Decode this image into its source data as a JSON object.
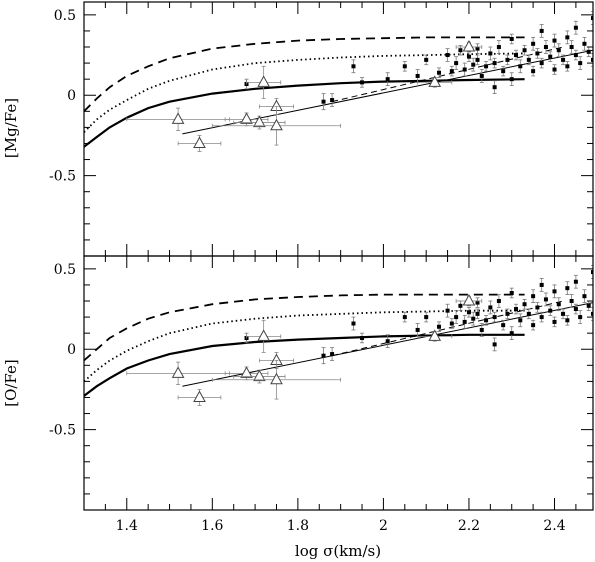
{
  "chart_data": [
    {
      "type": "scatter",
      "panel": "top",
      "ylabel": "[Mg/Fe]",
      "xlabel": "",
      "xlim": [
        1.3,
        2.49
      ],
      "ylim": [
        -1.0,
        0.58
      ],
      "xticks": [
        1.4,
        1.6,
        1.8,
        2.0,
        2.2,
        2.4
      ],
      "xtick_labels": [
        "",
        "",
        "",
        "",
        "",
        ""
      ],
      "yticks": [
        0.5,
        0,
        -0.5
      ],
      "ytick_labels": [
        "0.5",
        "0",
        "-0.5"
      ],
      "grid": false,
      "models": [
        {
          "style": "dashed",
          "x": [
            1.3,
            1.33,
            1.36,
            1.4,
            1.45,
            1.5,
            1.6,
            1.7,
            1.8,
            1.9,
            2.0,
            2.1,
            2.2,
            2.33
          ],
          "y": [
            -0.1,
            -0.02,
            0.05,
            0.12,
            0.18,
            0.23,
            0.29,
            0.32,
            0.34,
            0.35,
            0.355,
            0.36,
            0.36,
            0.36
          ]
        },
        {
          "style": "dotted",
          "x": [
            1.3,
            1.33,
            1.36,
            1.4,
            1.45,
            1.5,
            1.6,
            1.7,
            1.8,
            1.9,
            2.0,
            2.1,
            2.2,
            2.33
          ],
          "y": [
            -0.23,
            -0.15,
            -0.09,
            -0.03,
            0.04,
            0.09,
            0.16,
            0.2,
            0.22,
            0.235,
            0.245,
            0.25,
            0.255,
            0.26
          ]
        },
        {
          "style": "solid-thick",
          "x": [
            1.3,
            1.33,
            1.36,
            1.4,
            1.45,
            1.5,
            1.6,
            1.7,
            1.8,
            1.9,
            2.0,
            2.1,
            2.2,
            2.33
          ],
          "y": [
            -0.32,
            -0.26,
            -0.2,
            -0.14,
            -0.08,
            -0.04,
            0.01,
            0.04,
            0.06,
            0.075,
            0.085,
            0.09,
            0.095,
            0.1
          ]
        }
      ],
      "fits": [
        {
          "style": "solid-thin",
          "x": [
            1.53,
            2.49
          ],
          "y": [
            -0.24,
            0.28
          ]
        },
        {
          "style": "dashed-thin",
          "x": [
            1.88,
            2.42
          ],
          "y": [
            -0.04,
            0.3
          ]
        }
      ],
      "triangles": [
        {
          "x": 1.52,
          "y": -0.15,
          "xerr": 0.12,
          "yerr": 0.07
        },
        {
          "x": 1.57,
          "y": -0.3,
          "xerr": 0.05,
          "yerr": 0.05
        },
        {
          "x": 1.68,
          "y": -0.15,
          "xerr": 0.05,
          "yerr": 0.04
        },
        {
          "x": 1.71,
          "y": -0.17,
          "xerr": 0.06,
          "yerr": 0.04
        },
        {
          "x": 1.72,
          "y": 0.08,
          "xerr": 0.04,
          "yerr": 0.1
        },
        {
          "x": 1.75,
          "y": -0.07,
          "xerr": 0.04,
          "yerr": 0.05
        },
        {
          "x": 1.75,
          "y": -0.19,
          "xerr": 0.15,
          "yerr": 0.12
        },
        {
          "x": 2.12,
          "y": 0.08,
          "xerr": 0.04,
          "yerr": 0.03
        },
        {
          "x": 2.2,
          "y": 0.3,
          "xerr": 0.03,
          "yerr": 0.03
        }
      ],
      "points": [
        {
          "x": 1.68,
          "y": 0.07,
          "yerr": 0.03
        },
        {
          "x": 1.86,
          "y": -0.04,
          "yerr": 0.05
        },
        {
          "x": 1.88,
          "y": -0.03,
          "yerr": 0.04
        },
        {
          "x": 1.93,
          "y": 0.18,
          "yerr": 0.04
        },
        {
          "x": 1.95,
          "y": 0.08,
          "yerr": 0.03
        },
        {
          "x": 2.01,
          "y": 0.1,
          "yerr": 0.04
        },
        {
          "x": 2.05,
          "y": 0.18,
          "yerr": 0.03
        },
        {
          "x": 2.08,
          "y": 0.12,
          "yerr": 0.04
        },
        {
          "x": 2.1,
          "y": 0.22,
          "yerr": 0.03
        },
        {
          "x": 2.13,
          "y": 0.14,
          "yerr": 0.03
        },
        {
          "x": 2.15,
          "y": 0.25,
          "yerr": 0.04
        },
        {
          "x": 2.16,
          "y": 0.15,
          "yerr": 0.03
        },
        {
          "x": 2.17,
          "y": 0.2,
          "yerr": 0.04
        },
        {
          "x": 2.18,
          "y": 0.28,
          "yerr": 0.03
        },
        {
          "x": 2.19,
          "y": 0.16,
          "yerr": 0.04
        },
        {
          "x": 2.2,
          "y": 0.24,
          "yerr": 0.03
        },
        {
          "x": 2.21,
          "y": 0.19,
          "yerr": 0.04
        },
        {
          "x": 2.22,
          "y": 0.22,
          "yerr": 0.03
        },
        {
          "x": 2.22,
          "y": 0.29,
          "yerr": 0.03
        },
        {
          "x": 2.23,
          "y": 0.12,
          "yerr": 0.04
        },
        {
          "x": 2.24,
          "y": 0.18,
          "yerr": 0.03
        },
        {
          "x": 2.25,
          "y": 0.26,
          "yerr": 0.04
        },
        {
          "x": 2.26,
          "y": 0.05,
          "yerr": 0.04
        },
        {
          "x": 2.26,
          "y": 0.2,
          "yerr": 0.03
        },
        {
          "x": 2.27,
          "y": 0.3,
          "yerr": 0.04
        },
        {
          "x": 2.28,
          "y": 0.15,
          "yerr": 0.03
        },
        {
          "x": 2.29,
          "y": 0.22,
          "yerr": 0.03
        },
        {
          "x": 2.3,
          "y": 0.35,
          "yerr": 0.03
        },
        {
          "x": 2.3,
          "y": 0.1,
          "yerr": 0.04
        },
        {
          "x": 2.31,
          "y": 0.25,
          "yerr": 0.03
        },
        {
          "x": 2.32,
          "y": 0.18,
          "yerr": 0.04
        },
        {
          "x": 2.33,
          "y": 0.28,
          "yerr": 0.03
        },
        {
          "x": 2.34,
          "y": 0.22,
          "yerr": 0.03
        },
        {
          "x": 2.35,
          "y": 0.32,
          "yerr": 0.04
        },
        {
          "x": 2.35,
          "y": 0.15,
          "yerr": 0.03
        },
        {
          "x": 2.36,
          "y": 0.26,
          "yerr": 0.03
        },
        {
          "x": 2.37,
          "y": 0.4,
          "yerr": 0.04
        },
        {
          "x": 2.37,
          "y": 0.2,
          "yerr": 0.03
        },
        {
          "x": 2.38,
          "y": 0.3,
          "yerr": 0.04
        },
        {
          "x": 2.39,
          "y": 0.24,
          "yerr": 0.03
        },
        {
          "x": 2.4,
          "y": 0.34,
          "yerr": 0.04
        },
        {
          "x": 2.4,
          "y": 0.16,
          "yerr": 0.03
        },
        {
          "x": 2.41,
          "y": 0.28,
          "yerr": 0.04
        },
        {
          "x": 2.42,
          "y": 0.22,
          "yerr": 0.03
        },
        {
          "x": 2.43,
          "y": 0.36,
          "yerr": 0.04
        },
        {
          "x": 2.43,
          "y": 0.18,
          "yerr": 0.03
        },
        {
          "x": 2.44,
          "y": 0.3,
          "yerr": 0.04
        },
        {
          "x": 2.45,
          "y": 0.25,
          "yerr": 0.03
        },
        {
          "x": 2.45,
          "y": 0.42,
          "yerr": 0.04
        },
        {
          "x": 2.46,
          "y": 0.2,
          "yerr": 0.04
        },
        {
          "x": 2.47,
          "y": 0.32,
          "yerr": 0.04
        },
        {
          "x": 2.48,
          "y": 0.27,
          "yerr": 0.03
        },
        {
          "x": 2.49,
          "y": 0.48,
          "yerr": 0.04
        },
        {
          "x": 2.49,
          "y": 0.22,
          "yerr": 0.04
        }
      ]
    },
    {
      "type": "scatter",
      "panel": "bottom",
      "ylabel": "[O/Fe]",
      "xlabel": "log σ(km/s)",
      "xlim": [
        1.3,
        2.49
      ],
      "ylim": [
        -1.0,
        0.58
      ],
      "xticks": [
        1.4,
        1.6,
        1.8,
        2.0,
        2.2,
        2.4
      ],
      "xtick_labels": [
        "1.4",
        "1.6",
        "1.8",
        "2",
        "2.2",
        "2.4"
      ],
      "yticks": [
        0.5,
        0,
        -0.5
      ],
      "ytick_labels": [
        "0.5",
        "0",
        "-0.5"
      ],
      "grid": false,
      "models": [
        {
          "style": "dashed",
          "x": [
            1.3,
            1.33,
            1.36,
            1.4,
            1.45,
            1.5,
            1.6,
            1.7,
            1.8,
            1.9,
            2.0,
            2.1,
            2.2,
            2.33
          ],
          "y": [
            -0.07,
            0.0,
            0.07,
            0.13,
            0.19,
            0.23,
            0.28,
            0.31,
            0.325,
            0.335,
            0.34,
            0.34,
            0.34,
            0.34
          ]
        },
        {
          "style": "dotted",
          "x": [
            1.3,
            1.33,
            1.36,
            1.4,
            1.45,
            1.5,
            1.6,
            1.7,
            1.8,
            1.9,
            2.0,
            2.1,
            2.2,
            2.33
          ],
          "y": [
            -0.2,
            -0.13,
            -0.07,
            -0.01,
            0.05,
            0.1,
            0.16,
            0.19,
            0.21,
            0.22,
            0.23,
            0.235,
            0.24,
            0.24
          ]
        },
        {
          "style": "solid-thick",
          "x": [
            1.3,
            1.33,
            1.36,
            1.4,
            1.45,
            1.5,
            1.6,
            1.7,
            1.8,
            1.9,
            2.0,
            2.1,
            2.2,
            2.33
          ],
          "y": [
            -0.29,
            -0.23,
            -0.18,
            -0.12,
            -0.07,
            -0.03,
            0.02,
            0.045,
            0.06,
            0.07,
            0.08,
            0.085,
            0.09,
            0.09
          ]
        }
      ],
      "fits": [
        {
          "style": "solid-thin",
          "x": [
            1.53,
            2.49
          ],
          "y": [
            -0.23,
            0.29
          ]
        },
        {
          "style": "dashed-thin",
          "x": [
            1.88,
            2.42
          ],
          "y": [
            -0.04,
            0.3
          ]
        }
      ],
      "triangles": [
        {
          "x": 1.52,
          "y": -0.15,
          "xerr": 0.12,
          "yerr": 0.07
        },
        {
          "x": 1.57,
          "y": -0.3,
          "xerr": 0.05,
          "yerr": 0.05
        },
        {
          "x": 1.68,
          "y": -0.15,
          "xerr": 0.05,
          "yerr": 0.04
        },
        {
          "x": 1.71,
          "y": -0.17,
          "xerr": 0.06,
          "yerr": 0.04
        },
        {
          "x": 1.72,
          "y": 0.08,
          "xerr": 0.04,
          "yerr": 0.1
        },
        {
          "x": 1.75,
          "y": -0.07,
          "xerr": 0.04,
          "yerr": 0.05
        },
        {
          "x": 1.75,
          "y": -0.19,
          "xerr": 0.15,
          "yerr": 0.12
        },
        {
          "x": 2.12,
          "y": 0.08,
          "xerr": 0.04,
          "yerr": 0.03
        },
        {
          "x": 2.2,
          "y": 0.3,
          "xerr": 0.03,
          "yerr": 0.03
        }
      ],
      "points": [
        {
          "x": 1.68,
          "y": 0.07,
          "yerr": 0.03
        },
        {
          "x": 1.86,
          "y": -0.04,
          "yerr": 0.05
        },
        {
          "x": 1.88,
          "y": -0.03,
          "yerr": 0.04
        },
        {
          "x": 1.93,
          "y": 0.16,
          "yerr": 0.04
        },
        {
          "x": 1.95,
          "y": 0.07,
          "yerr": 0.03
        },
        {
          "x": 2.01,
          "y": 0.05,
          "yerr": 0.04
        },
        {
          "x": 2.05,
          "y": 0.2,
          "yerr": 0.03
        },
        {
          "x": 2.08,
          "y": 0.12,
          "yerr": 0.04
        },
        {
          "x": 2.1,
          "y": 0.2,
          "yerr": 0.03
        },
        {
          "x": 2.13,
          "y": 0.14,
          "yerr": 0.03
        },
        {
          "x": 2.15,
          "y": 0.24,
          "yerr": 0.04
        },
        {
          "x": 2.16,
          "y": 0.16,
          "yerr": 0.03
        },
        {
          "x": 2.17,
          "y": 0.2,
          "yerr": 0.04
        },
        {
          "x": 2.18,
          "y": 0.27,
          "yerr": 0.03
        },
        {
          "x": 2.19,
          "y": 0.17,
          "yerr": 0.04
        },
        {
          "x": 2.2,
          "y": 0.23,
          "yerr": 0.03
        },
        {
          "x": 2.21,
          "y": 0.19,
          "yerr": 0.04
        },
        {
          "x": 2.22,
          "y": 0.22,
          "yerr": 0.03
        },
        {
          "x": 2.22,
          "y": 0.29,
          "yerr": 0.03
        },
        {
          "x": 2.23,
          "y": 0.12,
          "yerr": 0.04
        },
        {
          "x": 2.24,
          "y": 0.18,
          "yerr": 0.03
        },
        {
          "x": 2.25,
          "y": 0.26,
          "yerr": 0.04
        },
        {
          "x": 2.26,
          "y": 0.03,
          "yerr": 0.04
        },
        {
          "x": 2.26,
          "y": 0.2,
          "yerr": 0.03
        },
        {
          "x": 2.27,
          "y": 0.3,
          "yerr": 0.04
        },
        {
          "x": 2.28,
          "y": 0.15,
          "yerr": 0.03
        },
        {
          "x": 2.29,
          "y": 0.22,
          "yerr": 0.03
        },
        {
          "x": 2.3,
          "y": 0.35,
          "yerr": 0.03
        },
        {
          "x": 2.3,
          "y": 0.1,
          "yerr": 0.04
        },
        {
          "x": 2.31,
          "y": 0.25,
          "yerr": 0.03
        },
        {
          "x": 2.32,
          "y": 0.18,
          "yerr": 0.04
        },
        {
          "x": 2.33,
          "y": 0.28,
          "yerr": 0.03
        },
        {
          "x": 2.34,
          "y": 0.22,
          "yerr": 0.03
        },
        {
          "x": 2.35,
          "y": 0.33,
          "yerr": 0.04
        },
        {
          "x": 2.35,
          "y": 0.15,
          "yerr": 0.03
        },
        {
          "x": 2.36,
          "y": 0.26,
          "yerr": 0.03
        },
        {
          "x": 2.37,
          "y": 0.4,
          "yerr": 0.04
        },
        {
          "x": 2.37,
          "y": 0.2,
          "yerr": 0.03
        },
        {
          "x": 2.38,
          "y": 0.31,
          "yerr": 0.04
        },
        {
          "x": 2.39,
          "y": 0.24,
          "yerr": 0.03
        },
        {
          "x": 2.4,
          "y": 0.36,
          "yerr": 0.04
        },
        {
          "x": 2.4,
          "y": 0.17,
          "yerr": 0.03
        },
        {
          "x": 2.41,
          "y": 0.28,
          "yerr": 0.04
        },
        {
          "x": 2.42,
          "y": 0.22,
          "yerr": 0.03
        },
        {
          "x": 2.43,
          "y": 0.38,
          "yerr": 0.04
        },
        {
          "x": 2.43,
          "y": 0.18,
          "yerr": 0.03
        },
        {
          "x": 2.44,
          "y": 0.3,
          "yerr": 0.04
        },
        {
          "x": 2.45,
          "y": 0.25,
          "yerr": 0.03
        },
        {
          "x": 2.45,
          "y": 0.42,
          "yerr": 0.04
        },
        {
          "x": 2.46,
          "y": 0.2,
          "yerr": 0.04
        },
        {
          "x": 2.47,
          "y": 0.33,
          "yerr": 0.04
        },
        {
          "x": 2.48,
          "y": 0.27,
          "yerr": 0.03
        },
        {
          "x": 2.49,
          "y": 0.48,
          "yerr": 0.04
        },
        {
          "x": 2.49,
          "y": 0.22,
          "yerr": 0.04
        }
      ]
    }
  ]
}
